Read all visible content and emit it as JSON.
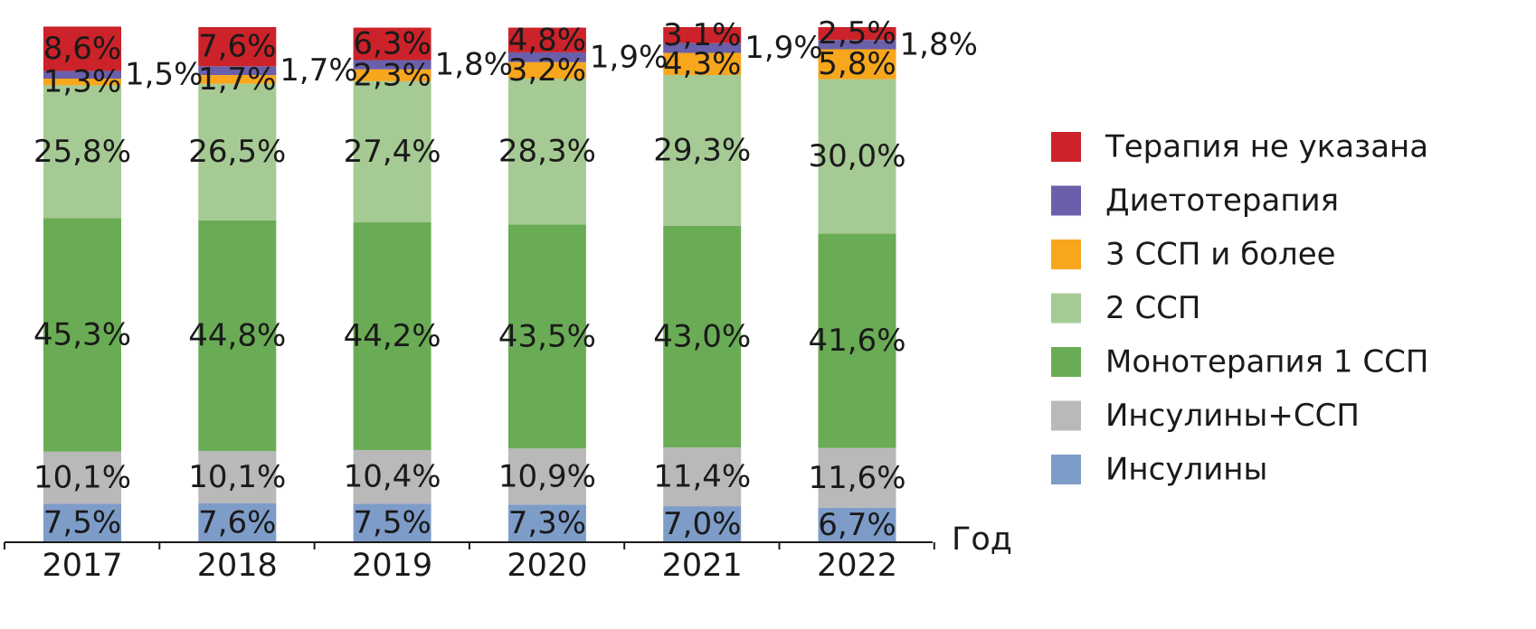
{
  "chart_data": {
    "type": "bar",
    "stacked": true,
    "title": "",
    "xlabel": "Год",
    "ylabel": "",
    "ylim": [
      0,
      100
    ],
    "grid": false,
    "legend_position": "right",
    "categories": [
      "2017",
      "2018",
      "2019",
      "2020",
      "2021",
      "2022"
    ],
    "series": [
      {
        "name": "Инсулины",
        "color": "#7e9cc8",
        "values": [
          7.5,
          7.6,
          7.5,
          7.3,
          7.0,
          6.7
        ],
        "labels": [
          "7,5%",
          "7,6%",
          "7,5%",
          "7,3%",
          "7,0%",
          "6,7%"
        ]
      },
      {
        "name": "Инсулины+ССП",
        "color": "#b9b9b9",
        "values": [
          10.1,
          10.1,
          10.4,
          10.9,
          11.4,
          11.6
        ],
        "labels": [
          "10,1%",
          "10,1%",
          "10,4%",
          "10,9%",
          "11,4%",
          "11,6%"
        ]
      },
      {
        "name": "Монотерапия 1 ССП",
        "color": "#6aac55",
        "values": [
          45.3,
          44.8,
          44.2,
          43.5,
          43.0,
          41.6
        ],
        "labels": [
          "45,3%",
          "44,8%",
          "44,2%",
          "43,5%",
          "43,0%",
          "41,6%"
        ]
      },
      {
        "name": "2 ССП",
        "color": "#a6ca94",
        "values": [
          25.8,
          26.5,
          27.4,
          28.3,
          29.3,
          30.0
        ],
        "labels": [
          "25,8%",
          "26,5%",
          "27,4%",
          "28,3%",
          "29,3%",
          "30,0%"
        ]
      },
      {
        "name": "3 ССП и более",
        "color": "#f8a61c",
        "values": [
          1.3,
          1.7,
          2.3,
          3.2,
          4.3,
          5.8
        ],
        "labels": [
          "1,3%",
          "1,7%",
          "2,3%",
          "3,2%",
          "4,3%",
          "5,8%"
        ]
      },
      {
        "name": "Диетотерапия",
        "color": "#6a5fab",
        "values": [
          1.5,
          1.7,
          1.8,
          1.9,
          1.9,
          1.8
        ],
        "labels": [
          "1,5%",
          "1,7%",
          "1,8%",
          "1,9%",
          "1,9%",
          "1,8%"
        ],
        "labels_outside": true
      },
      {
        "name": "Терапия не указана",
        "color": "#cc2229",
        "values": [
          8.6,
          7.6,
          6.3,
          4.8,
          3.1,
          2.5
        ],
        "labels": [
          "8,6%",
          "7,6%",
          "6,3%",
          "4,8%",
          "3,1%",
          "2,5%"
        ]
      }
    ]
  }
}
